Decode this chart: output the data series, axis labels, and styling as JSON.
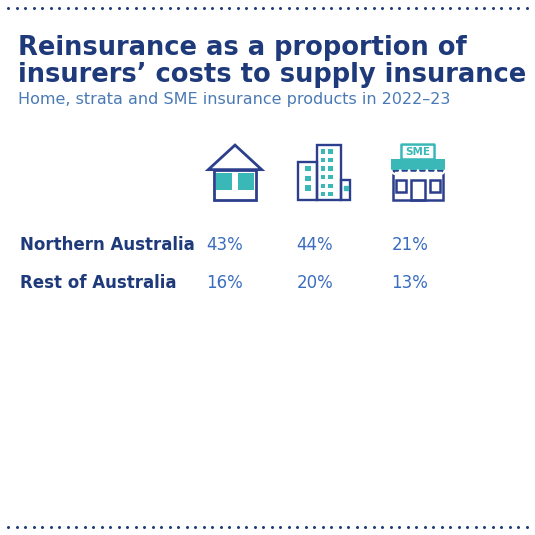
{
  "title_line1": "Reinsurance as a proportion of",
  "title_line2": "insurers’ costs to supply insurance",
  "subtitle": "Home, strata and SME insurance products in 2022–23",
  "title_color": "#1f3a7a",
  "subtitle_color": "#4a7ab5",
  "background_color": "#ffffff",
  "dot_color": "#1f3a7a",
  "rows": [
    "Northern Australia",
    "Rest of Australia"
  ],
  "values": [
    [
      "43%",
      "44%",
      "21%"
    ],
    [
      "16%",
      "20%",
      "13%"
    ]
  ],
  "row_label_color": "#1f3a7a",
  "value_color": "#3a6dbf",
  "icon_primary_color": "#2b3f8c",
  "icon_accent_color": "#3ab8b8"
}
